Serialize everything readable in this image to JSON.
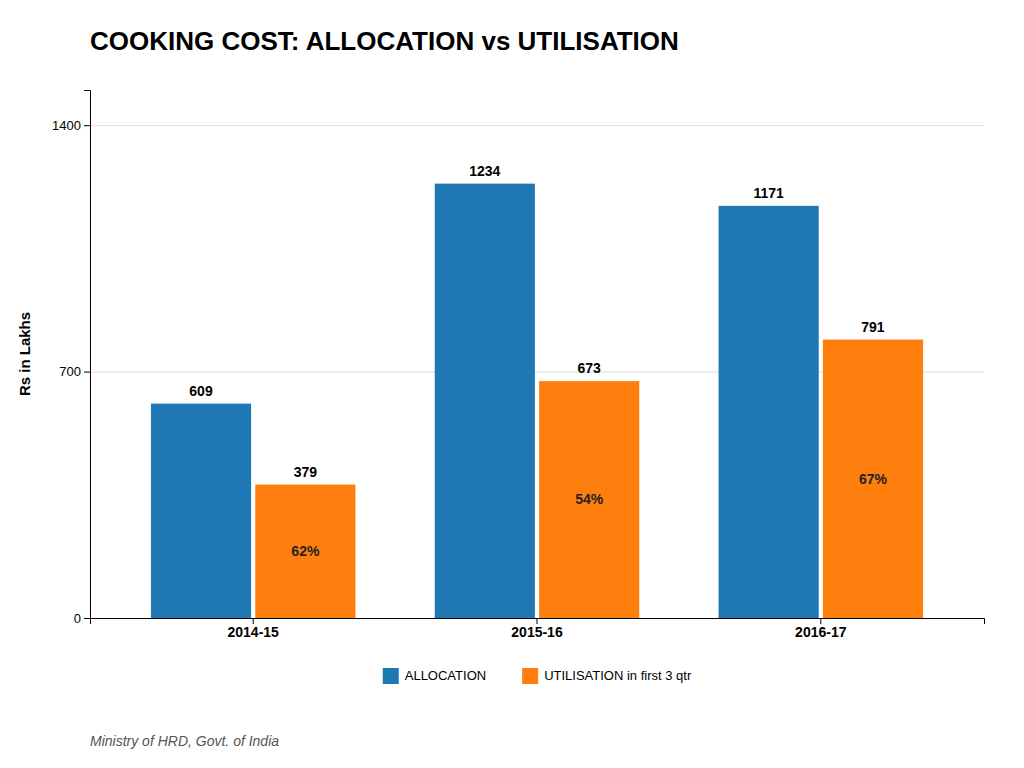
{
  "chart_data": {
    "type": "bar",
    "title": "COOKING COST: ALLOCATION vs UTILISATION",
    "ylabel": "Rs in Lakhs",
    "footer": "Ministry of HRD, Govt. of India",
    "categories": [
      "2014-15",
      "2015-16",
      "2016-17"
    ],
    "series": [
      {
        "name": "ALLOCATION",
        "values": [
          609,
          1234,
          1171
        ]
      },
      {
        "name": "UTILISATION in first 3 qtr",
        "values": [
          379,
          673,
          791
        ]
      }
    ],
    "annotations": [
      "62%",
      "54%",
      "67%"
    ],
    "ylim": [
      0,
      1500
    ],
    "yticks": [
      0,
      700,
      1400
    ],
    "grid": true,
    "legend": "bottom",
    "data_labels": true
  }
}
